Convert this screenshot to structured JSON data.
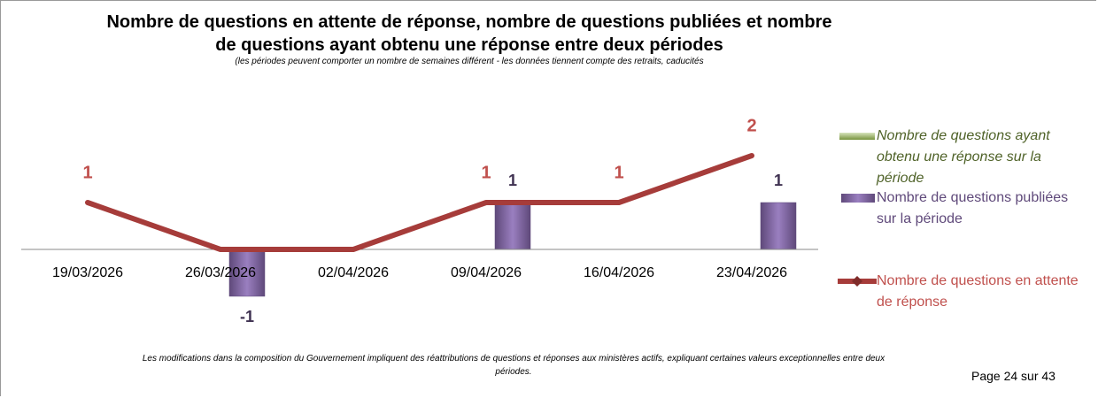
{
  "chart_data": {
    "type": "bar-line",
    "title": "Nombre de questions en attente de réponse, nombre de questions publiées et nombre de questions ayant obtenu une réponse entre deux périodes",
    "subtitle": "(les périodes peuvent comporter un nombre de semaines différent - les données tiennent compte des retraits, caducités",
    "categories": [
      "19/03/2026",
      "26/03/2026",
      "02/04/2026",
      "09/04/2026",
      "16/04/2026",
      "23/04/2026"
    ],
    "series": [
      {
        "name": "Nombre de questions ayant obtenu une réponse sur la période",
        "type": "bar",
        "color": "#9bbb59",
        "values": [
          0,
          0,
          0,
          0,
          0,
          0
        ]
      },
      {
        "name": "Nombre de questions publiées sur la période",
        "type": "bar",
        "color": "#8064a2",
        "values": [
          0,
          -1,
          0,
          1,
          0,
          1
        ],
        "value_labels": [
          null,
          "-1",
          null,
          "1",
          null,
          "1"
        ]
      },
      {
        "name": "Nombre de questions en attente de réponse",
        "type": "line",
        "color": "#a63c3a",
        "values": [
          1,
          0,
          0,
          1,
          1,
          2
        ],
        "value_labels": [
          "1",
          null,
          null,
          "1",
          "1",
          "2"
        ]
      }
    ],
    "ylim": [
      -2,
      3
    ],
    "legend": "right",
    "footnote": "Les modifications dans la composition du Gouvernement impliquent des réattributions de questions et réponses aux ministères actifs, expliquant certaines valeurs exceptionnelles entre deux périodes."
  },
  "page_label": "Page 24 sur 43"
}
